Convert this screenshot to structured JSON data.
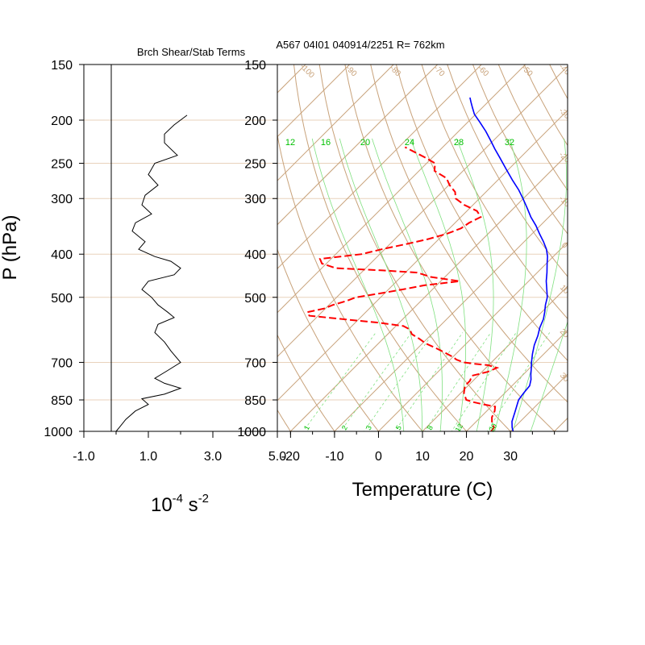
{
  "title": "A567 04I01 040914/2251 R= 762km",
  "colors": {
    "isotherm": "#c8a27a",
    "isobar": "#e8d2bb",
    "mixing_ratio": "#00c000",
    "dewpoint": "#ff0000",
    "temperature": "#0000ff",
    "shear": "#000000"
  },
  "chart_data": [
    {
      "type": "line",
      "title": "Brch Shear/Stab Terms",
      "ylabel": "P (hPa)",
      "xlabel": "10",
      "xlabel_sup1": "-4",
      "xlabel_unit": " s",
      "xlabel_sup2": "-2",
      "xlim": [
        -1.0,
        5.0
      ],
      "ylim": [
        1000,
        150
      ],
      "y_scale": "log",
      "x_ticks": [
        "-1.0",
        "1.0",
        "3.0",
        "5.0"
      ],
      "y_ticks": [
        "150",
        "200",
        "250",
        "300",
        "400",
        "500",
        "700",
        "850",
        "1000"
      ],
      "y_tick_values": [
        150,
        200,
        250,
        300,
        400,
        500,
        700,
        850,
        1000
      ],
      "series": [
        {
          "points": [
            [
              2.2,
              195
            ],
            [
              1.8,
              205
            ],
            [
              1.5,
              215
            ],
            [
              1.5,
              225
            ],
            [
              1.9,
              240
            ],
            [
              1.2,
              250
            ],
            [
              1.0,
              265
            ],
            [
              1.3,
              280
            ],
            [
              0.9,
              295
            ],
            [
              0.8,
              310
            ],
            [
              1.1,
              325
            ],
            [
              0.6,
              340
            ],
            [
              0.5,
              355
            ],
            [
              0.9,
              375
            ],
            [
              0.7,
              390
            ],
            [
              1.2,
              405
            ],
            [
              1.7,
              415
            ],
            [
              2.0,
              430
            ],
            [
              1.8,
              445
            ],
            [
              1.0,
              460
            ],
            [
              0.8,
              480
            ],
            [
              1.1,
              500
            ],
            [
              1.3,
              520
            ],
            [
              1.6,
              540
            ],
            [
              1.8,
              555
            ],
            [
              1.3,
              575
            ],
            [
              1.2,
              600
            ],
            [
              1.5,
              630
            ],
            [
              1.7,
              660
            ],
            [
              2.0,
              700
            ],
            [
              1.6,
              730
            ],
            [
              1.2,
              760
            ],
            [
              1.5,
              780
            ],
            [
              2.0,
              800
            ],
            [
              1.5,
              825
            ],
            [
              0.8,
              845
            ],
            [
              1.0,
              870
            ],
            [
              0.6,
              900
            ],
            [
              0.3,
              940
            ],
            [
              0.1,
              980
            ],
            [
              0.0,
              1000
            ]
          ]
        }
      ]
    },
    {
      "type": "line",
      "subtype": "skew-t",
      "xlabel": "Temperature (C)",
      "xlim": [
        -23,
        43
      ],
      "ylim": [
        1000,
        150
      ],
      "y_scale": "log",
      "x_ticks": [
        "-20",
        "-10",
        "0",
        "10",
        "20",
        "30"
      ],
      "x_tick_values": [
        -20,
        -10,
        0,
        10,
        20,
        30
      ],
      "y_ticks": [
        "150",
        "200",
        "250",
        "300",
        "400",
        "500",
        "700",
        "850",
        "1000"
      ],
      "y_tick_values": [
        150,
        200,
        250,
        300,
        400,
        500,
        700,
        850,
        1000
      ],
      "isotherm_labels": [
        "30",
        "20",
        "10",
        "0",
        "-10",
        "-20",
        "-30",
        "-40",
        "-50",
        "-60",
        "-70",
        "-80",
        "-90",
        "-100",
        "-110",
        "-120",
        "-130",
        "-140",
        "-150"
      ],
      "mixing_ratio_top_labels": [
        "12",
        "16",
        "20",
        "24",
        "28",
        "32"
      ],
      "mixing_ratio_bottom_labels": [
        "1",
        "2",
        "3",
        "5",
        "8",
        "12",
        "20"
      ],
      "series": [
        {
          "name": "temperature",
          "points": [
            [
              30.6,
              1000
            ],
            [
              29.5,
              980
            ],
            [
              28.1,
              950
            ],
            [
              26.8,
              910
            ],
            [
              25.6,
              875
            ],
            [
              24.7,
              850
            ],
            [
              24.3,
              820
            ],
            [
              24.0,
              790
            ],
            [
              22.9,
              765
            ],
            [
              21.7,
              745
            ],
            [
              20.3,
              720
            ],
            [
              19.1,
              700
            ],
            [
              17.4,
              670
            ],
            [
              15.8,
              640
            ],
            [
              14.5,
              610
            ],
            [
              13.1,
              585
            ],
            [
              12.0,
              560
            ],
            [
              10.7,
              540
            ],
            [
              9.2,
              520
            ],
            [
              7.9,
              500
            ],
            [
              6.0,
              480
            ],
            [
              4.0,
              460
            ],
            [
              2.2,
              440
            ],
            [
              0.2,
              420
            ],
            [
              -1.3,
              405
            ],
            [
              -3.2,
              390
            ],
            [
              -5.6,
              375
            ],
            [
              -8.3,
              360
            ],
            [
              -11.0,
              345
            ],
            [
              -14.1,
              330
            ],
            [
              -17.0,
              315
            ],
            [
              -20.1,
              300
            ],
            [
              -23.0,
              287
            ],
            [
              -26.6,
              273
            ],
            [
              -30.5,
              258
            ],
            [
              -34.6,
              243
            ],
            [
              -37.8,
              232
            ],
            [
              -40.7,
              222
            ],
            [
              -43.8,
              212
            ],
            [
              -47.3,
              202
            ],
            [
              -50.3,
              194
            ],
            [
              -52.4,
              187
            ],
            [
              -53.9,
              182
            ],
            [
              -55.1,
              178
            ]
          ]
        },
        {
          "name": "dewpoint",
          "points": [
            [
              25.6,
              1000
            ],
            [
              25.4,
              980
            ],
            [
              24.0,
              960
            ],
            [
              22.6,
              930
            ],
            [
              21.8,
              900
            ],
            [
              20.9,
              880
            ],
            [
              17.8,
              870
            ],
            [
              15.0,
              860
            ],
            [
              12.8,
              850
            ],
            [
              10.7,
              820
            ],
            [
              9.3,
              790
            ],
            [
              9.3,
              770
            ],
            [
              8.6,
              750
            ],
            [
              11.3,
              735
            ],
            [
              12.5,
              720
            ],
            [
              9.8,
              710
            ],
            [
              6.5,
              705
            ],
            [
              3.7,
              700
            ],
            [
              1.4,
              690
            ],
            [
              -0.1,
              680
            ],
            [
              -2.9,
              665
            ],
            [
              -5.9,
              650
            ],
            [
              -9.2,
              635
            ],
            [
              -11.7,
              620
            ],
            [
              -14.5,
              605
            ],
            [
              -16.1,
              590
            ],
            [
              -18.3,
              580
            ],
            [
              -24.7,
              570
            ],
            [
              -33.5,
              560
            ],
            [
              -42.0,
              550
            ],
            [
              -43.3,
              540
            ],
            [
              -40.3,
              530
            ],
            [
              -39.1,
              520
            ],
            [
              -37.0,
              510
            ],
            [
              -35.6,
              500
            ],
            [
              -31.0,
              490
            ],
            [
              -26.8,
              480
            ],
            [
              -22.8,
              470
            ],
            [
              -15.7,
              460
            ],
            [
              -23.2,
              450
            ],
            [
              -27.3,
              440
            ],
            [
              -35.6,
              435
            ],
            [
              -46.8,
              430
            ],
            [
              -51.0,
              420
            ],
            [
              -52.5,
              410
            ],
            [
              -44.1,
              400
            ],
            [
              -40.7,
              390
            ],
            [
              -36.4,
              380
            ],
            [
              -32.4,
              370
            ],
            [
              -29.4,
              360
            ],
            [
              -27.4,
              350
            ],
            [
              -26.8,
              340
            ],
            [
              -25.5,
              330
            ],
            [
              -27.7,
              320
            ],
            [
              -32.0,
              310
            ],
            [
              -35.4,
              300
            ],
            [
              -37.0,
              290
            ],
            [
              -39.8,
              280
            ],
            [
              -42.1,
              270
            ],
            [
              -46.5,
              260
            ],
            [
              -48.1,
              250
            ],
            [
              -52.0,
              242
            ],
            [
              -55.8,
              235
            ],
            [
              -58.6,
              230
            ]
          ]
        }
      ]
    }
  ]
}
